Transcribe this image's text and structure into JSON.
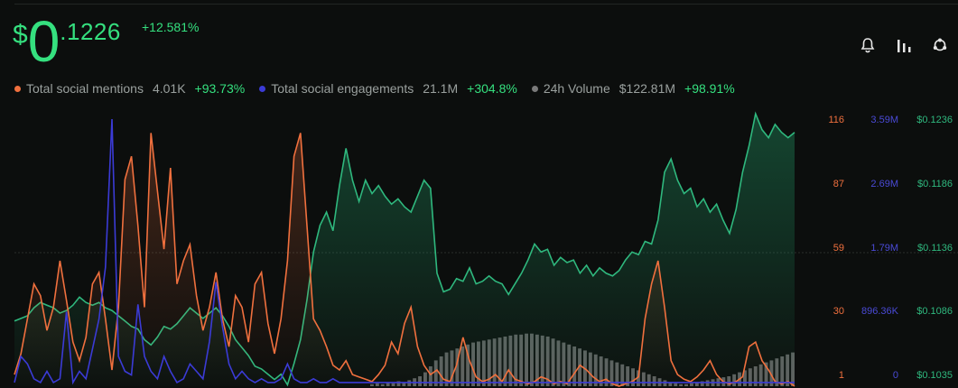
{
  "price": {
    "currency": "$",
    "integer": "0",
    "decimals": ".1226"
  },
  "change_24h": "+12.581%",
  "toolbar": {
    "icons": [
      "bell-icon",
      "bar-chart-icon",
      "share-icon"
    ]
  },
  "legend": [
    {
      "label": "Total social mentions",
      "value": "4.01K",
      "change": "+93.73%",
      "color": "#f0703e"
    },
    {
      "label": "Total social engagements",
      "value": "21.1M",
      "change": "+304.8%",
      "color": "#3b3bd6"
    },
    {
      "label": "24h Volume",
      "value": "$122.81M",
      "change": "+98.91%",
      "color": "#8a8a8a"
    }
  ],
  "chart_data": {
    "type": "line",
    "x": [
      0,
      1,
      2,
      3,
      4,
      5,
      6,
      7,
      8,
      9,
      10,
      11,
      12,
      13,
      14,
      15,
      16,
      17,
      18,
      19,
      20,
      21,
      22,
      23,
      24,
      25,
      26,
      27,
      28,
      29,
      30,
      31,
      32,
      33,
      34,
      35,
      36,
      37,
      38,
      39,
      40,
      41,
      42,
      43,
      44,
      45,
      46,
      47,
      48,
      49,
      50,
      51,
      52,
      53,
      54,
      55,
      56,
      57,
      58,
      59,
      60,
      61,
      62,
      63,
      64,
      65,
      66,
      67,
      68,
      69,
      70,
      71,
      72,
      73,
      74,
      75,
      76,
      77,
      78,
      79,
      80,
      81,
      82,
      83,
      84,
      85,
      86,
      87,
      88,
      89,
      90,
      91,
      92,
      93,
      94,
      95,
      96,
      97,
      98,
      99,
      100,
      101,
      102,
      103,
      104,
      105,
      106,
      107,
      108,
      109,
      110,
      111,
      112,
      113,
      114,
      115,
      116,
      117,
      118,
      119,
      120
    ],
    "series": [
      {
        "name": "Total social mentions",
        "color": "#f0703e",
        "axis": "left",
        "values": [
          6,
          15,
          30,
          45,
          40,
          25,
          35,
          55,
          38,
          20,
          12,
          22,
          45,
          50,
          30,
          8,
          35,
          90,
          100,
          70,
          35,
          110,
          85,
          60,
          95,
          45,
          55,
          62,
          40,
          25,
          35,
          50,
          30,
          18,
          40,
          35,
          20,
          45,
          50,
          28,
          15,
          30,
          55,
          100,
          110,
          70,
          30,
          25,
          18,
          10,
          8,
          12,
          6,
          5,
          4,
          3,
          6,
          10,
          20,
          15,
          28,
          35,
          18,
          10,
          6,
          8,
          4,
          3,
          10,
          22,
          12,
          5,
          3,
          4,
          6,
          3,
          8,
          4,
          3,
          2,
          3,
          5,
          4,
          2,
          3,
          2,
          6,
          10,
          8,
          5,
          3,
          4,
          2,
          1,
          2,
          3,
          5,
          30,
          45,
          55,
          35,
          12,
          6,
          4,
          3,
          5,
          8,
          12,
          6,
          3,
          2,
          3,
          5,
          18,
          20,
          12,
          8,
          3,
          2,
          3,
          1
        ]
      },
      {
        "name": "Total social engagements",
        "color": "#3b3bd6",
        "axis": "middle",
        "values": [
          0.05,
          0.4,
          0.3,
          0.1,
          0.05,
          0.2,
          0.05,
          0.1,
          1.0,
          0.05,
          0.2,
          0.1,
          0.5,
          0.9,
          1.6,
          3.59,
          0.4,
          0.2,
          0.15,
          1.1,
          0.4,
          0.2,
          0.1,
          0.4,
          0.2,
          0.05,
          0.1,
          0.3,
          0.2,
          0.1,
          0.6,
          1.4,
          0.8,
          0.3,
          0.1,
          0.2,
          0.1,
          0.05,
          0.1,
          0.05,
          0.05,
          0.1,
          0.3,
          0.1,
          0.05,
          0.05,
          0.1,
          0.05,
          0.05,
          0.1,
          0.05,
          0.05,
          0.05,
          0.05,
          0.05,
          0.05,
          0.05,
          0.05,
          0.05,
          0.05,
          0.05,
          0.05,
          0.05,
          0.05,
          0.05,
          0.05,
          0.05,
          0.05,
          0.05,
          0.05,
          0.05,
          0.05,
          0.05,
          0.05,
          0.05,
          0.05,
          0.05,
          0.05,
          0.05,
          0.05,
          0.05,
          0.05,
          0.05,
          0.05,
          0.05,
          0.05,
          0.05,
          0.05,
          0.05,
          0.05,
          0.05,
          0.05,
          0.05,
          0.05,
          0.05,
          0.05,
          0.05,
          0.05,
          0.05,
          0.05,
          0.05,
          0.05,
          0.05,
          0.05,
          0.05,
          0.05,
          0.05,
          0.05,
          0.05,
          0.05,
          0.05,
          0.05,
          0.05,
          0.05,
          0.05,
          0.05,
          0.05,
          0.05,
          0.05,
          0.05,
          0.05
        ]
      },
      {
        "name": "Price",
        "color": "#2fb87e",
        "axis": "right",
        "values": [
          0.1084,
          0.1086,
          0.1088,
          0.1094,
          0.1098,
          0.1096,
          0.1094,
          0.109,
          0.1092,
          0.1096,
          0.1102,
          0.1098,
          0.1096,
          0.1098,
          0.1094,
          0.1092,
          0.1088,
          0.1084,
          0.108,
          0.1078,
          0.107,
          0.1066,
          0.1072,
          0.108,
          0.1078,
          0.1082,
          0.1088,
          0.1094,
          0.109,
          0.1086,
          0.109,
          0.1094,
          0.1088,
          0.108,
          0.107,
          0.1064,
          0.1058,
          0.105,
          0.1048,
          0.1044,
          0.104,
          0.1044,
          0.1036,
          0.1052,
          0.107,
          0.11,
          0.1136,
          0.1156,
          0.1166,
          0.1152,
          0.1186,
          0.1214,
          0.119,
          0.1174,
          0.119,
          0.118,
          0.1186,
          0.1178,
          0.1172,
          0.1176,
          0.117,
          0.1166,
          0.1178,
          0.119,
          0.1184,
          0.112,
          0.1106,
          0.1108,
          0.1116,
          0.1114,
          0.1124,
          0.1112,
          0.1114,
          0.1118,
          0.1114,
          0.1112,
          0.1104,
          0.1112,
          0.112,
          0.113,
          0.1142,
          0.1136,
          0.1138,
          0.1126,
          0.1132,
          0.1128,
          0.113,
          0.112,
          0.1126,
          0.1118,
          0.1124,
          0.112,
          0.1118,
          0.1122,
          0.113,
          0.1136,
          0.1134,
          0.1144,
          0.1142,
          0.116,
          0.1196,
          0.1206,
          0.119,
          0.118,
          0.1184,
          0.117,
          0.1176,
          0.1166,
          0.1172,
          0.116,
          0.115,
          0.1168,
          0.1196,
          0.1216,
          0.124,
          0.1228,
          0.1222,
          0.1232,
          0.1226,
          0.1222,
          0.1226
        ]
      },
      {
        "name": "24h Volume",
        "color": "#8a8a8a",
        "axis": "bars",
        "values": [
          0,
          0,
          0,
          0,
          0,
          0,
          0,
          0,
          0,
          0,
          0,
          0,
          0,
          0,
          0,
          0,
          0,
          0,
          0,
          0,
          0,
          0,
          0,
          0,
          0,
          0,
          0,
          0,
          0,
          0,
          0,
          0,
          0,
          0,
          0,
          0,
          0,
          0,
          0,
          0,
          0,
          0,
          0,
          0,
          0,
          0,
          0,
          0,
          0,
          0,
          0,
          0,
          0,
          0,
          0,
          0,
          0,
          0,
          0,
          0,
          0,
          0,
          0,
          0,
          0,
          0,
          0,
          0,
          0,
          0,
          0,
          0,
          0,
          0,
          0,
          0,
          0,
          0,
          0,
          0,
          0,
          0,
          0,
          0,
          0,
          0,
          0,
          0,
          0,
          0,
          0,
          0,
          0,
          0,
          0,
          0,
          0,
          0,
          0,
          0,
          0,
          0,
          0,
          0,
          0,
          0,
          0,
          0,
          0,
          0,
          0,
          0,
          0,
          0,
          0,
          0,
          0,
          0,
          0,
          0,
          0
        ]
      }
    ],
    "volume_bars": [
      0,
      0,
      0,
      0,
      0,
      0,
      0,
      0,
      0,
      0,
      0,
      0,
      0,
      0,
      0,
      0,
      0,
      0,
      0,
      0,
      0,
      0,
      0,
      0,
      0,
      0,
      0,
      0,
      0,
      0,
      0,
      0,
      0,
      0,
      0,
      0,
      0,
      0,
      0,
      0,
      0,
      0,
      0,
      0,
      0,
      0,
      0,
      0,
      0,
      0,
      0,
      0,
      0,
      0,
      0,
      0,
      0,
      0,
      0,
      0,
      0,
      0,
      0,
      0,
      0,
      0,
      0,
      0,
      0,
      0,
      0,
      0,
      0,
      0,
      0,
      0,
      0,
      0,
      0,
      0,
      0,
      0,
      0,
      0,
      0,
      0,
      0,
      0,
      0,
      0,
      0,
      0,
      0,
      0,
      0,
      0,
      0,
      0,
      0,
      0,
      0,
      0,
      0,
      0,
      0,
      0,
      0,
      0,
      0,
      0,
      0,
      0,
      0,
      0,
      0,
      0,
      0,
      0,
      0,
      0,
      0
    ],
    "volume_profile": [
      0.02,
      0.03,
      0.02,
      0.04,
      0.03,
      0.05,
      0.04,
      0.06,
      0.08,
      0.1,
      0.14,
      0.2,
      0.26,
      0.3,
      0.34,
      0.36,
      0.38,
      0.4,
      0.42,
      0.44,
      0.45,
      0.46,
      0.47,
      0.48,
      0.49,
      0.5,
      0.51,
      0.52,
      0.52,
      0.53,
      0.53,
      0.52,
      0.51,
      0.5,
      0.48,
      0.46,
      0.44,
      0.42,
      0.4,
      0.38,
      0.36,
      0.34,
      0.32,
      0.3,
      0.28,
      0.26,
      0.24,
      0.22,
      0.2,
      0.18,
      0.16,
      0.14,
      0.12,
      0.1,
      0.08,
      0.06,
      0.04,
      0.03,
      0.02,
      0.02,
      0.03,
      0.04,
      0.05,
      0.06,
      0.07,
      0.08,
      0.09,
      0.1,
      0.12,
      0.14,
      0.16,
      0.18,
      0.2,
      0.22,
      0.24,
      0.26,
      0.28,
      0.3,
      0.32,
      0.34
    ],
    "left_axis": {
      "ticks": [
        "116",
        "87",
        "59",
        "30",
        "1"
      ],
      "min": 1,
      "max": 116,
      "color": "#f0703e"
    },
    "middle_axis": {
      "ticks": [
        "3.59M",
        "2.69M",
        "1.79M",
        "896.36K",
        "0"
      ],
      "min": 0,
      "max": 3.59,
      "color": "#4a4ad6"
    },
    "right_axis": {
      "ticks": [
        "$0.1236",
        "$0.1186",
        "$0.1136",
        "$0.1086",
        "$0.1035"
      ],
      "min": 0.1035,
      "max": 0.1236,
      "color": "#2fb87e"
    },
    "grid": "single dashed midline"
  }
}
